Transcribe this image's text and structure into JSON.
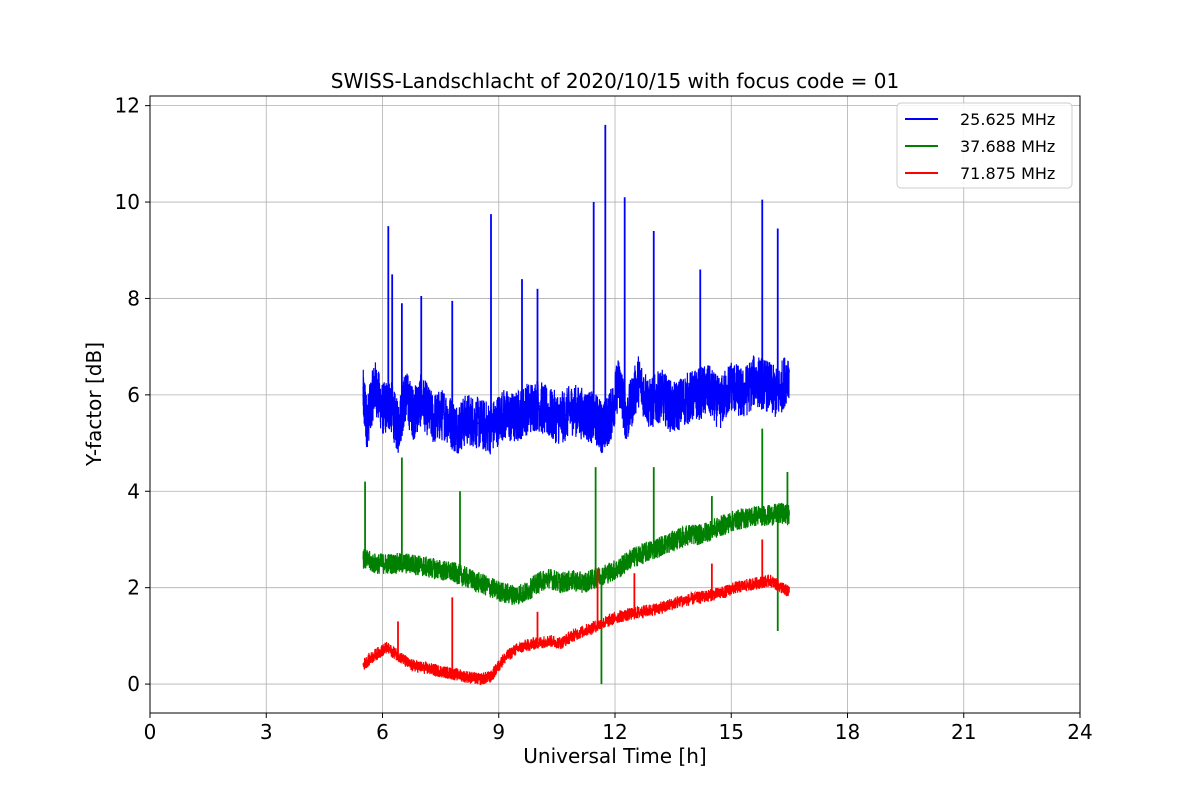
{
  "chart_data": {
    "type": "line",
    "title": "SWISS-Landschlacht of 2020/10/15 with focus code = 01",
    "xlabel": "Universal Time [h]",
    "ylabel": "Y-factor [dB]",
    "xlim": [
      0,
      24
    ],
    "ylim": [
      -0.6,
      12.2
    ],
    "xticks": [
      0,
      3,
      6,
      9,
      12,
      15,
      18,
      21,
      24
    ],
    "yticks": [
      0,
      2,
      4,
      6,
      8,
      10,
      12
    ],
    "grid": true,
    "legend_position": "top-right",
    "series": [
      {
        "name": "25.625 MHz",
        "color": "#0000ff",
        "x": [
          5.5,
          5.6,
          5.8,
          6.0,
          6.2,
          6.4,
          6.6,
          6.8,
          7.0,
          7.3,
          7.6,
          7.9,
          8.2,
          8.5,
          8.8,
          9.1,
          9.4,
          9.7,
          10.0,
          10.3,
          10.6,
          10.9,
          11.2,
          11.5,
          11.7,
          11.9,
          12.1,
          12.3,
          12.6,
          12.9,
          13.2,
          13.5,
          13.8,
          14.1,
          14.4,
          14.7,
          15.0,
          15.3,
          15.6,
          15.9,
          16.2,
          16.5
        ],
        "values": [
          6.0,
          5.4,
          6.2,
          5.7,
          5.8,
          5.3,
          6.0,
          5.6,
          5.9,
          5.5,
          5.6,
          5.3,
          5.5,
          5.4,
          5.3,
          5.6,
          5.5,
          5.7,
          5.8,
          5.6,
          5.5,
          5.7,
          5.6,
          5.5,
          5.3,
          5.6,
          6.3,
          5.5,
          6.3,
          5.8,
          6.0,
          5.7,
          5.9,
          6.0,
          6.1,
          5.8,
          6.2,
          6.0,
          6.3,
          6.2,
          6.0,
          6.5
        ],
        "spikes": [
          [
            6.15,
            9.5
          ],
          [
            6.25,
            8.5
          ],
          [
            6.5,
            7.9
          ],
          [
            7.0,
            8.05
          ],
          [
            7.8,
            7.95
          ],
          [
            8.8,
            9.75
          ],
          [
            9.6,
            8.4
          ],
          [
            10.0,
            8.2
          ],
          [
            11.45,
            10.0
          ],
          [
            11.75,
            11.6
          ],
          [
            12.25,
            10.1
          ],
          [
            13.0,
            9.4
          ],
          [
            14.2,
            8.6
          ],
          [
            15.8,
            10.05
          ],
          [
            16.2,
            9.45
          ]
        ]
      },
      {
        "name": "37.688 MHz",
        "color": "#008000",
        "x": [
          5.5,
          5.8,
          6.1,
          6.4,
          6.7,
          7.0,
          7.3,
          7.6,
          7.9,
          8.2,
          8.5,
          8.8,
          9.1,
          9.4,
          9.7,
          10.0,
          10.3,
          10.6,
          10.9,
          11.2,
          11.5,
          11.8,
          12.1,
          12.4,
          12.7,
          13.0,
          13.3,
          13.6,
          13.9,
          14.2,
          14.5,
          14.8,
          15.1,
          15.4,
          15.7,
          16.0,
          16.3,
          16.5
        ],
        "values": [
          2.6,
          2.5,
          2.5,
          2.5,
          2.5,
          2.45,
          2.4,
          2.35,
          2.3,
          2.2,
          2.1,
          2.0,
          1.9,
          1.85,
          1.9,
          2.1,
          2.2,
          2.1,
          2.15,
          2.1,
          2.2,
          2.3,
          2.4,
          2.6,
          2.7,
          2.8,
          2.9,
          3.0,
          3.1,
          3.1,
          3.2,
          3.3,
          3.4,
          3.45,
          3.5,
          3.5,
          3.55,
          3.5
        ],
        "spikes": [
          [
            5.55,
            4.2
          ],
          [
            6.5,
            4.7
          ],
          [
            8.0,
            4.0
          ],
          [
            11.5,
            4.5
          ],
          [
            11.65,
            0.0
          ],
          [
            13.0,
            4.5
          ],
          [
            14.5,
            3.9
          ],
          [
            15.8,
            5.3
          ],
          [
            16.2,
            1.1
          ],
          [
            16.45,
            4.4
          ]
        ]
      },
      {
        "name": "71.875 MHz",
        "color": "#ff0000",
        "x": [
          5.5,
          5.8,
          6.1,
          6.4,
          6.7,
          7.0,
          7.3,
          7.6,
          7.9,
          8.2,
          8.5,
          8.8,
          9.1,
          9.4,
          9.7,
          10.0,
          10.3,
          10.6,
          10.9,
          11.2,
          11.5,
          11.8,
          12.1,
          12.4,
          12.7,
          13.0,
          13.3,
          13.6,
          13.9,
          14.2,
          14.5,
          14.8,
          15.1,
          15.4,
          15.7,
          16.0,
          16.3,
          16.5
        ],
        "values": [
          0.4,
          0.6,
          0.75,
          0.6,
          0.4,
          0.35,
          0.3,
          0.25,
          0.2,
          0.15,
          0.1,
          0.15,
          0.5,
          0.7,
          0.8,
          0.85,
          0.9,
          0.85,
          1.0,
          1.1,
          1.2,
          1.3,
          1.4,
          1.45,
          1.5,
          1.55,
          1.6,
          1.7,
          1.75,
          1.8,
          1.85,
          1.9,
          2.0,
          2.05,
          2.1,
          2.15,
          2.0,
          1.9
        ],
        "spikes": [
          [
            6.4,
            1.3
          ],
          [
            7.8,
            1.8
          ],
          [
            10.0,
            1.5
          ],
          [
            11.55,
            2.4
          ],
          [
            12.5,
            2.3
          ],
          [
            14.5,
            2.5
          ],
          [
            15.8,
            3.0
          ]
        ]
      }
    ]
  }
}
